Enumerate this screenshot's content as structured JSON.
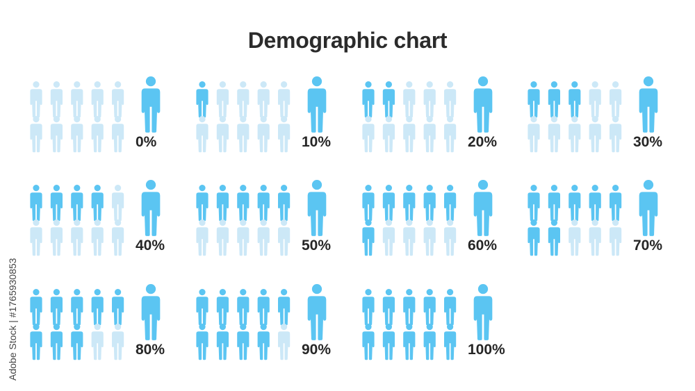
{
  "chart_data": {
    "type": "pictogram",
    "title": "Demographic chart",
    "icons_per_grid": 10,
    "series": [
      {
        "label": "0%",
        "value": 0
      },
      {
        "label": "10%",
        "value": 10
      },
      {
        "label": "20%",
        "value": 20
      },
      {
        "label": "30%",
        "value": 30
      },
      {
        "label": "40%",
        "value": 40
      },
      {
        "label": "50%",
        "value": 50
      },
      {
        "label": "60%",
        "value": 60
      },
      {
        "label": "70%",
        "value": 70
      },
      {
        "label": "80%",
        "value": 80
      },
      {
        "label": "90%",
        "value": 90
      },
      {
        "label": "100%",
        "value": 100
      }
    ]
  },
  "colors": {
    "filled": "#5bc5f2",
    "empty": "#cce8f7",
    "label": "#262626"
  },
  "icons": {
    "person": "person-icon"
  },
  "watermark": "Adobe Stock | #1765930853"
}
